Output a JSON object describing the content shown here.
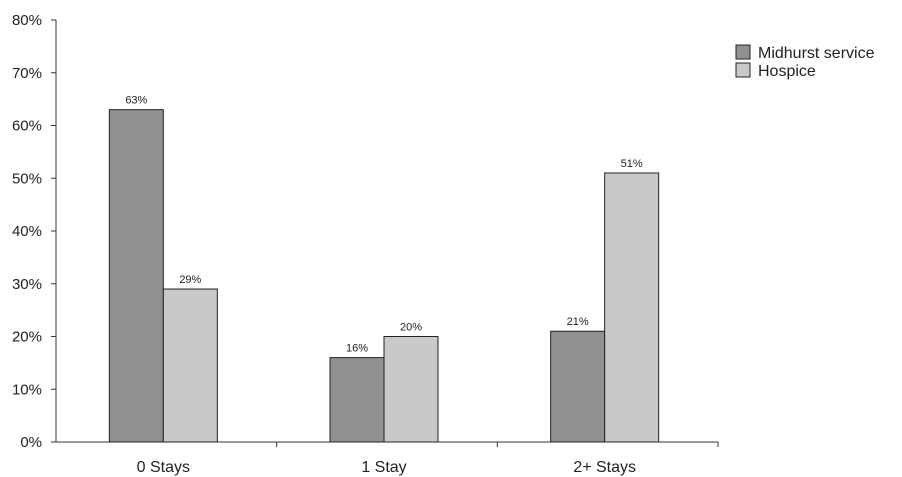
{
  "chart_data": {
    "type": "bar",
    "categories": [
      "0 Stays",
      "1 Stay",
      "2+ Stays"
    ],
    "series": [
      {
        "name": "Midhurst service",
        "values": [
          63,
          16,
          21
        ],
        "color": "#919191",
        "labels": [
          "63%",
          "16%",
          "21%"
        ]
      },
      {
        "name": "Hospice",
        "values": [
          29,
          20,
          51
        ],
        "color": "#c9c9c9",
        "labels": [
          "29%",
          "20%",
          "51%"
        ]
      }
    ],
    "ylim": [
      0,
      80
    ],
    "yticks": [
      {
        "value": 0,
        "label": "0%"
      },
      {
        "value": 10,
        "label": "10%"
      },
      {
        "value": 20,
        "label": "20%"
      },
      {
        "value": 30,
        "label": "30%"
      },
      {
        "value": 40,
        "label": "40%"
      },
      {
        "value": 50,
        "label": "50%"
      },
      {
        "value": 60,
        "label": "60%"
      },
      {
        "value": 70,
        "label": "70%"
      },
      {
        "value": 80,
        "label": "80%"
      }
    ],
    "grid": false,
    "legend": "top-right"
  }
}
